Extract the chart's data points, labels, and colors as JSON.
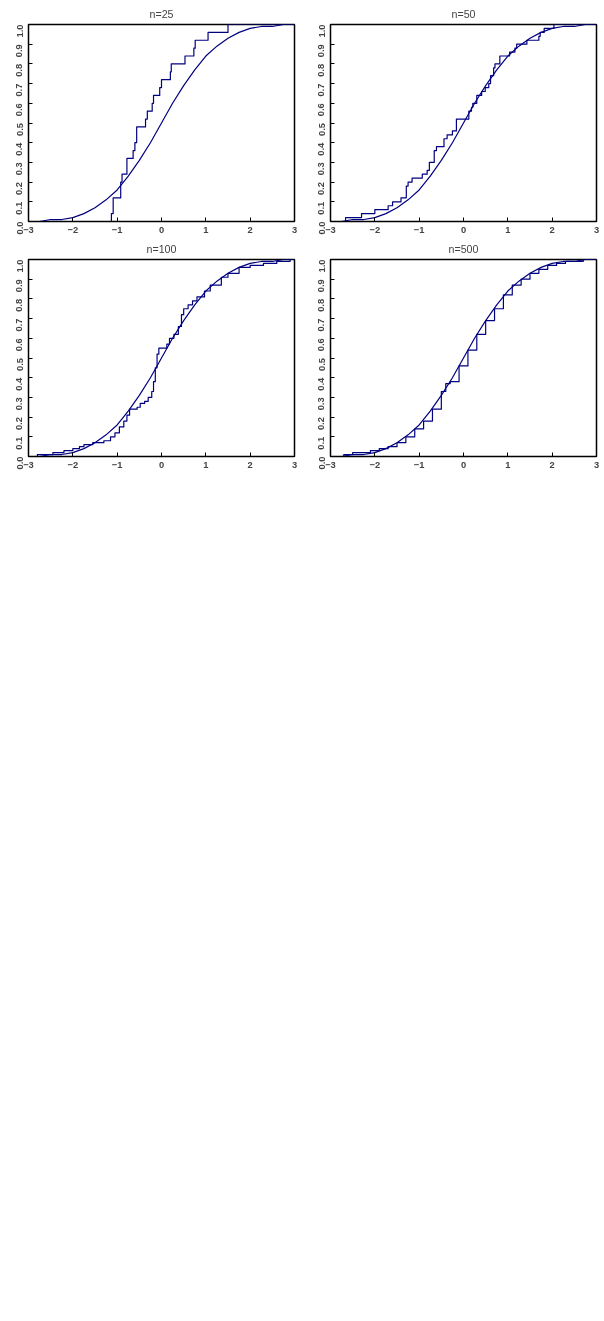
{
  "chart_data": [
    {
      "type": "step",
      "title": "n=25",
      "xlim": [
        -3,
        3
      ],
      "ylim": [
        0,
        1
      ],
      "xticks": [
        -3,
        -2,
        -1,
        0,
        1,
        2,
        3
      ],
      "yticks": [
        {
          "value": 0,
          "label": "0.0"
        },
        {
          "value": 0.1,
          "label": "0.1"
        },
        {
          "value": 0.2,
          "label": "0.2"
        },
        {
          "value": 0.3,
          "label": "0.3"
        },
        {
          "value": 0.4,
          "label": "0.4"
        },
        {
          "value": 0.5,
          "label": "0.5"
        },
        {
          "value": 0.6,
          "label": "0.6"
        },
        {
          "value": 0.7,
          "label": "0.7"
        },
        {
          "value": 0.8,
          "label": "0.8"
        },
        {
          "value": 0.9,
          "label": "0.9"
        },
        {
          "value": 1,
          "label": "1.0"
        }
      ],
      "grid": false,
      "series": [
        {
          "color": "#000080",
          "x": [
            -3,
            -1.13,
            -1.09,
            -0.92,
            -0.89,
            -0.78,
            -0.64,
            -0.6,
            -0.56,
            -0.36,
            -0.32,
            -0.21,
            -0.18,
            -0.04,
            0.0,
            0.2,
            0.22,
            0.53,
            0.73,
            0.76,
            1.05,
            1.5,
            3
          ],
          "values": [
            0,
            0.04,
            0.12,
            0.2,
            0.24,
            0.32,
            0.36,
            0.4,
            0.48,
            0.52,
            0.56,
            0.6,
            0.64,
            0.68,
            0.72,
            0.76,
            0.8,
            0.84,
            0.88,
            0.92,
            0.96,
            1.0,
            1.0
          ]
        },
        {
          "type": "line",
          "color": "#000080",
          "x": [
            -3,
            -2.75,
            -2.5,
            -2.25,
            -2,
            -1.75,
            -1.5,
            -1.25,
            -1,
            -0.75,
            -0.5,
            -0.25,
            0,
            0.25,
            0.5,
            0.75,
            1,
            1.25,
            1.5,
            1.75,
            2,
            2.25,
            2.5,
            2.75,
            3
          ],
          "values": [
            0.0,
            0.0,
            0.01,
            0.01,
            0.02,
            0.04,
            0.07,
            0.11,
            0.16,
            0.23,
            0.31,
            0.4,
            0.5,
            0.6,
            0.69,
            0.77,
            0.84,
            0.89,
            0.93,
            0.96,
            0.98,
            0.99,
            0.99,
            1.0,
            1.0
          ]
        }
      ]
    },
    {
      "type": "step",
      "title": "n=50",
      "xlim": [
        -3,
        3
      ],
      "ylim": [
        0,
        1
      ],
      "xticks": [
        -3,
        -2,
        -1,
        0,
        1,
        2,
        3
      ],
      "yticks": [
        {
          "value": 0,
          "label": "0.0"
        },
        {
          "value": 0.1,
          "label": "0.1"
        },
        {
          "value": 0.2,
          "label": "0.2"
        },
        {
          "value": 0.3,
          "label": "0.3"
        },
        {
          "value": 0.4,
          "label": "0.4"
        },
        {
          "value": 0.5,
          "label": "0.5"
        },
        {
          "value": 0.6,
          "label": "0.6"
        },
        {
          "value": 0.7,
          "label": "0.7"
        },
        {
          "value": 0.8,
          "label": "0.8"
        },
        {
          "value": 0.9,
          "label": "0.9"
        },
        {
          "value": 1,
          "label": "1.0"
        }
      ],
      "grid": false,
      "series": [
        {
          "color": "#000080",
          "x": [
            -3,
            -2.66,
            -2.3,
            -2.0,
            -1.7,
            -1.6,
            -1.41,
            -1.29,
            -1.25,
            -1.16,
            -0.93,
            -0.82,
            -0.77,
            -0.66,
            -0.61,
            -0.44,
            -0.37,
            -0.25,
            -0.16,
            0.12,
            0.18,
            0.21,
            0.3,
            0.41,
            0.49,
            0.57,
            0.61,
            0.68,
            0.71,
            0.82,
            1.04,
            1.16,
            1.2,
            1.43,
            1.7,
            1.73,
            1.82,
            2.04,
            3
          ],
          "values": [
            0,
            0.02,
            0.04,
            0.06,
            0.08,
            0.1,
            0.12,
            0.18,
            0.2,
            0.22,
            0.24,
            0.26,
            0.3,
            0.36,
            0.38,
            0.42,
            0.44,
            0.46,
            0.52,
            0.56,
            0.58,
            0.6,
            0.64,
            0.66,
            0.68,
            0.7,
            0.74,
            0.78,
            0.8,
            0.84,
            0.86,
            0.88,
            0.9,
            0.92,
            0.94,
            0.96,
            0.98,
            1.0,
            1.0
          ]
        },
        {
          "type": "line",
          "color": "#000080",
          "x": [
            -3,
            -2.75,
            -2.5,
            -2.25,
            -2,
            -1.75,
            -1.5,
            -1.25,
            -1,
            -0.75,
            -0.5,
            -0.25,
            0,
            0.25,
            0.5,
            0.75,
            1,
            1.25,
            1.5,
            1.75,
            2,
            2.25,
            2.5,
            2.75,
            3
          ],
          "values": [
            0.0,
            0.0,
            0.01,
            0.01,
            0.02,
            0.04,
            0.07,
            0.11,
            0.16,
            0.23,
            0.31,
            0.4,
            0.5,
            0.6,
            0.69,
            0.77,
            0.84,
            0.89,
            0.93,
            0.96,
            0.98,
            0.99,
            0.99,
            1.0,
            1.0
          ]
        }
      ]
    },
    {
      "type": "step",
      "title": "n=100",
      "xlim": [
        -3,
        3
      ],
      "ylim": [
        0,
        1
      ],
      "xticks": [
        -3,
        -2,
        -1,
        0,
        1,
        2,
        3
      ],
      "yticks": [
        {
          "value": 0,
          "label": "0.0"
        },
        {
          "value": 0.1,
          "label": "0.1"
        },
        {
          "value": 0.2,
          "label": "0.2"
        },
        {
          "value": 0.3,
          "label": "0.3"
        },
        {
          "value": 0.4,
          "label": "0.4"
        },
        {
          "value": 0.5,
          "label": "0.5"
        },
        {
          "value": 0.6,
          "label": "0.6"
        },
        {
          "value": 0.7,
          "label": "0.7"
        },
        {
          "value": 0.8,
          "label": "0.8"
        },
        {
          "value": 0.9,
          "label": "0.9"
        },
        {
          "value": 1,
          "label": "1.0"
        }
      ],
      "grid": false,
      "series": [
        {
          "color": "#000080",
          "x": [
            -3,
            -2.8,
            -2.45,
            -2.2,
            -2.0,
            -1.85,
            -1.75,
            -1.55,
            -1.3,
            -1.15,
            -1.05,
            -0.95,
            -0.85,
            -0.78,
            -0.72,
            -0.55,
            -0.48,
            -0.38,
            -0.3,
            -0.22,
            -0.18,
            -0.14,
            -0.1,
            -0.06,
            0.12,
            0.18,
            0.28,
            0.38,
            0.45,
            0.5,
            0.6,
            0.7,
            0.8,
            0.97,
            1.1,
            1.35,
            1.5,
            1.75,
            2.0,
            2.3,
            2.6,
            2.9,
            3
          ],
          "values": [
            0,
            0.01,
            0.02,
            0.03,
            0.04,
            0.05,
            0.06,
            0.07,
            0.08,
            0.1,
            0.12,
            0.15,
            0.18,
            0.21,
            0.24,
            0.25,
            0.27,
            0.28,
            0.3,
            0.33,
            0.38,
            0.45,
            0.52,
            0.55,
            0.57,
            0.6,
            0.62,
            0.66,
            0.72,
            0.75,
            0.77,
            0.79,
            0.81,
            0.84,
            0.87,
            0.91,
            0.93,
            0.96,
            0.97,
            0.98,
            0.99,
            1.0,
            1.0
          ]
        },
        {
          "type": "line",
          "color": "#000080",
          "x": [
            -3,
            -2.75,
            -2.5,
            -2.25,
            -2,
            -1.75,
            -1.5,
            -1.25,
            -1,
            -0.75,
            -0.5,
            -0.25,
            0,
            0.25,
            0.5,
            0.75,
            1,
            1.25,
            1.5,
            1.75,
            2,
            2.25,
            2.5,
            2.75,
            3
          ],
          "values": [
            0.0,
            0.0,
            0.01,
            0.01,
            0.02,
            0.04,
            0.07,
            0.11,
            0.16,
            0.23,
            0.31,
            0.4,
            0.5,
            0.6,
            0.69,
            0.77,
            0.84,
            0.89,
            0.93,
            0.96,
            0.98,
            0.99,
            0.99,
            1.0,
            1.0
          ]
        }
      ]
    },
    {
      "type": "step",
      "title": "n=500",
      "xlim": [
        -3,
        3
      ],
      "ylim": [
        0,
        1
      ],
      "xticks": [
        -3,
        -2,
        -1,
        0,
        1,
        2,
        3
      ],
      "yticks": [
        {
          "value": 0,
          "label": "0.0"
        },
        {
          "value": 0.1,
          "label": "0.1"
        },
        {
          "value": 0.2,
          "label": "0.2"
        },
        {
          "value": 0.3,
          "label": "0.3"
        },
        {
          "value": 0.4,
          "label": "0.4"
        },
        {
          "value": 0.5,
          "label": "0.5"
        },
        {
          "value": 0.6,
          "label": "0.6"
        },
        {
          "value": 0.7,
          "label": "0.7"
        },
        {
          "value": 0.8,
          "label": "0.8"
        },
        {
          "value": 0.9,
          "label": "0.9"
        },
        {
          "value": 1,
          "label": "1.0"
        }
      ],
      "grid": false,
      "series": [
        {
          "color": "#000080",
          "x": [
            -3,
            -2.9,
            -2.7,
            -2.5,
            -2.3,
            -2.1,
            -1.9,
            -1.7,
            -1.5,
            -1.3,
            -1.1,
            -0.9,
            -0.7,
            -0.5,
            -0.4,
            -0.3,
            -0.1,
            0.1,
            0.3,
            0.5,
            0.7,
            0.9,
            1.1,
            1.3,
            1.5,
            1.7,
            1.9,
            2.1,
            2.3,
            2.5,
            2.7,
            3
          ],
          "values": [
            0,
            0.0,
            0.01,
            0.02,
            0.02,
            0.03,
            0.04,
            0.05,
            0.07,
            0.1,
            0.14,
            0.18,
            0.24,
            0.33,
            0.37,
            0.38,
            0.46,
            0.54,
            0.62,
            0.69,
            0.75,
            0.82,
            0.87,
            0.9,
            0.93,
            0.95,
            0.97,
            0.98,
            0.99,
            0.99,
            1.0,
            1.0
          ]
        },
        {
          "type": "line",
          "color": "#000080",
          "x": [
            -3,
            -2.75,
            -2.5,
            -2.25,
            -2,
            -1.75,
            -1.5,
            -1.25,
            -1,
            -0.75,
            -0.5,
            -0.25,
            0,
            0.25,
            0.5,
            0.75,
            1,
            1.25,
            1.5,
            1.75,
            2,
            2.25,
            2.5,
            2.75,
            3
          ],
          "values": [
            0.0,
            0.0,
            0.01,
            0.01,
            0.02,
            0.04,
            0.07,
            0.11,
            0.16,
            0.23,
            0.31,
            0.4,
            0.5,
            0.6,
            0.69,
            0.77,
            0.84,
            0.89,
            0.93,
            0.96,
            0.98,
            0.99,
            0.99,
            1.0,
            1.0
          ]
        }
      ]
    }
  ]
}
